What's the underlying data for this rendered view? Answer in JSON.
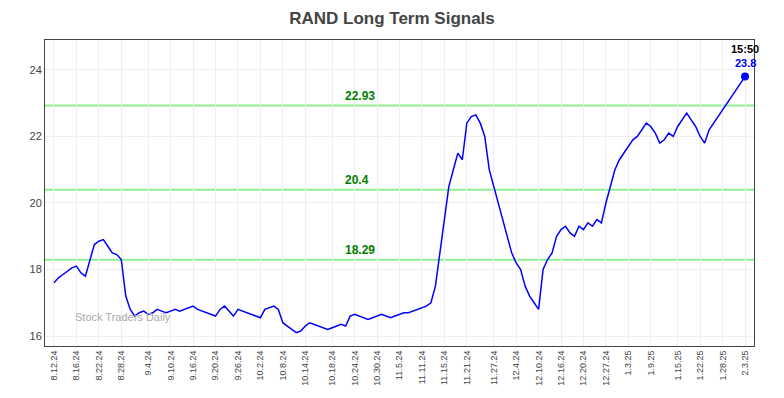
{
  "chart_data": {
    "type": "line",
    "title": "RAND Long Term Signals",
    "color": "blue",
    "grid": true,
    "ylim": [
      15.7,
      24.9
    ],
    "yticks": [
      16,
      18,
      20,
      22,
      24
    ],
    "hlines": [
      {
        "value": 18.29,
        "label": "18.29",
        "color": "#90EE90",
        "label_color": "green"
      },
      {
        "value": 20.4,
        "label": "20.4",
        "color": "#90EE90",
        "label_color": "green"
      },
      {
        "value": 22.93,
        "label": "22.93",
        "color": "#90EE90",
        "label_color": "green"
      }
    ],
    "last_point_labels": [
      {
        "text": "15:50",
        "color": "black"
      },
      {
        "text": "23.8",
        "color": "blue"
      }
    ],
    "watermark": {
      "text": "Stock Traders Daily",
      "color": "#aaaaaa"
    },
    "categories": [
      "8.12.24",
      null,
      null,
      null,
      null,
      "8.16.24",
      null,
      null,
      null,
      null,
      "8.22.24",
      null,
      null,
      null,
      null,
      "8.28.24",
      null,
      null,
      null,
      null,
      null,
      "9.4.24",
      null,
      null,
      null,
      null,
      "9.10.24",
      null,
      null,
      null,
      null,
      "9.16.24",
      null,
      null,
      null,
      null,
      "9.20.24",
      null,
      null,
      null,
      null,
      "9.26.24",
      null,
      null,
      null,
      null,
      "10.2.24",
      null,
      null,
      null,
      null,
      "10.8.24",
      null,
      null,
      null,
      null,
      "10.14.24",
      null,
      null,
      null,
      null,
      null,
      "10.18.24",
      null,
      null,
      null,
      null,
      "10.24.24",
      null,
      null,
      null,
      null,
      "10.30.24",
      null,
      null,
      null,
      null,
      "11.5.24",
      null,
      null,
      null,
      null,
      "11.11.24",
      null,
      null,
      null,
      null,
      "11.15.24",
      null,
      null,
      null,
      null,
      "11.21.24",
      null,
      null,
      null,
      null,
      null,
      "11.27.24",
      null,
      null,
      null,
      null,
      "12.4.24",
      null,
      null,
      null,
      null,
      "12.10.24",
      null,
      null,
      null,
      null,
      "12.16.24",
      null,
      null,
      null,
      null,
      "12.20.24",
      null,
      null,
      null,
      null,
      "12.27.24",
      null,
      null,
      null,
      null,
      "1.3.25",
      null,
      null,
      null,
      null,
      "1.9.25",
      null,
      null,
      null,
      null,
      null,
      "1.15.25",
      null,
      null,
      null,
      null,
      "1.22.25",
      null,
      null,
      null,
      null,
      "1.28.25",
      null,
      null,
      null,
      null,
      "2.3.25"
    ],
    "values": [
      17.6,
      17.75,
      17.85,
      17.95,
      18.05,
      18.1,
      17.9,
      17.8,
      18.3,
      18.75,
      18.85,
      18.9,
      18.7,
      18.5,
      18.45,
      18.3,
      17.2,
      16.8,
      16.6,
      16.7,
      16.75,
      16.65,
      16.7,
      16.8,
      16.75,
      16.7,
      16.75,
      16.8,
      16.75,
      16.8,
      16.85,
      16.9,
      16.8,
      16.75,
      16.7,
      16.65,
      16.6,
      16.8,
      16.9,
      16.75,
      16.6,
      16.8,
      16.75,
      16.7,
      16.65,
      16.6,
      16.55,
      16.8,
      16.85,
      16.9,
      16.8,
      16.4,
      16.3,
      16.2,
      16.1,
      16.15,
      16.3,
      16.4,
      16.35,
      16.3,
      16.25,
      16.2,
      16.25,
      16.3,
      16.35,
      16.3,
      16.6,
      16.65,
      16.6,
      16.55,
      16.5,
      16.55,
      16.6,
      16.65,
      16.6,
      16.55,
      16.6,
      16.65,
      16.7,
      16.7,
      16.75,
      16.8,
      16.85,
      16.9,
      17.0,
      17.5,
      18.5,
      19.5,
      20.5,
      21.0,
      21.5,
      21.3,
      22.4,
      22.6,
      22.65,
      22.4,
      22.0,
      21.0,
      20.5,
      20.0,
      19.5,
      19.0,
      18.5,
      18.2,
      18.0,
      17.5,
      17.2,
      17.0,
      16.8,
      18.0,
      18.3,
      18.5,
      19.0,
      19.2,
      19.3,
      19.1,
      19.0,
      19.3,
      19.2,
      19.4,
      19.3,
      19.5,
      19.4,
      20.0,
      20.5,
      21.0,
      21.3,
      21.5,
      21.7,
      21.9,
      22.0,
      22.2,
      22.4,
      22.3,
      22.1,
      21.8,
      21.9,
      22.1,
      22.0,
      22.3,
      22.5,
      22.7,
      22.5,
      22.3,
      22.0,
      21.8,
      22.2,
      22.4,
      22.6,
      22.8,
      23.0,
      23.2,
      23.4,
      23.6,
      23.8
    ]
  }
}
